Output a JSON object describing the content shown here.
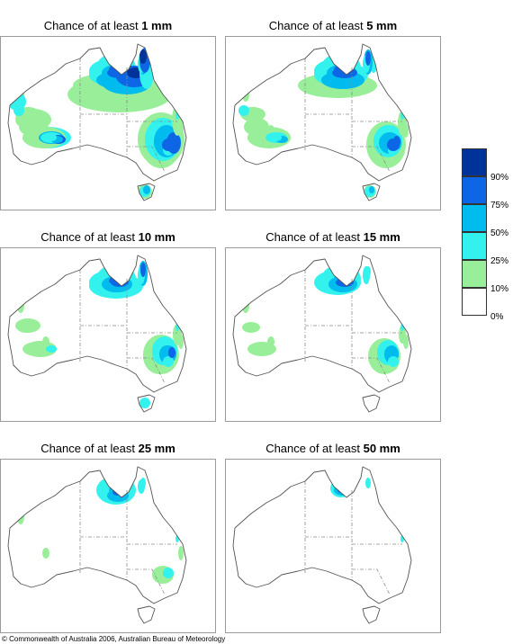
{
  "panels": [
    {
      "prefix": "Chance of at least",
      "value": "1 mm",
      "level": 6
    },
    {
      "prefix": "Chance of at least",
      "value": "5 mm",
      "level": 5
    },
    {
      "prefix": "Chance of at least",
      "value": "10 mm",
      "level": 4
    },
    {
      "prefix": "Chance of at least",
      "value": "15 mm",
      "level": 3
    },
    {
      "prefix": "Chance of at least",
      "value": "25 mm",
      "level": 2
    },
    {
      "prefix": "Chance of at least",
      "value": "50 mm",
      "level": 1
    }
  ],
  "legend": {
    "colors": [
      "#003399",
      "#0d66e6",
      "#00bbee",
      "#33f2ee",
      "#99ee99",
      "#ffffff"
    ],
    "labels": [
      "90%",
      "75%",
      "50%",
      "25%",
      "10%",
      "0%"
    ]
  },
  "colors": {
    "outline": "#555555",
    "border_line": "#8a8a8a",
    "frame": "#9a9a9a"
  },
  "footer": {
    "copyright": "© Commonwealth of Australia 2006, Australian Bureau of Meteorology"
  }
}
